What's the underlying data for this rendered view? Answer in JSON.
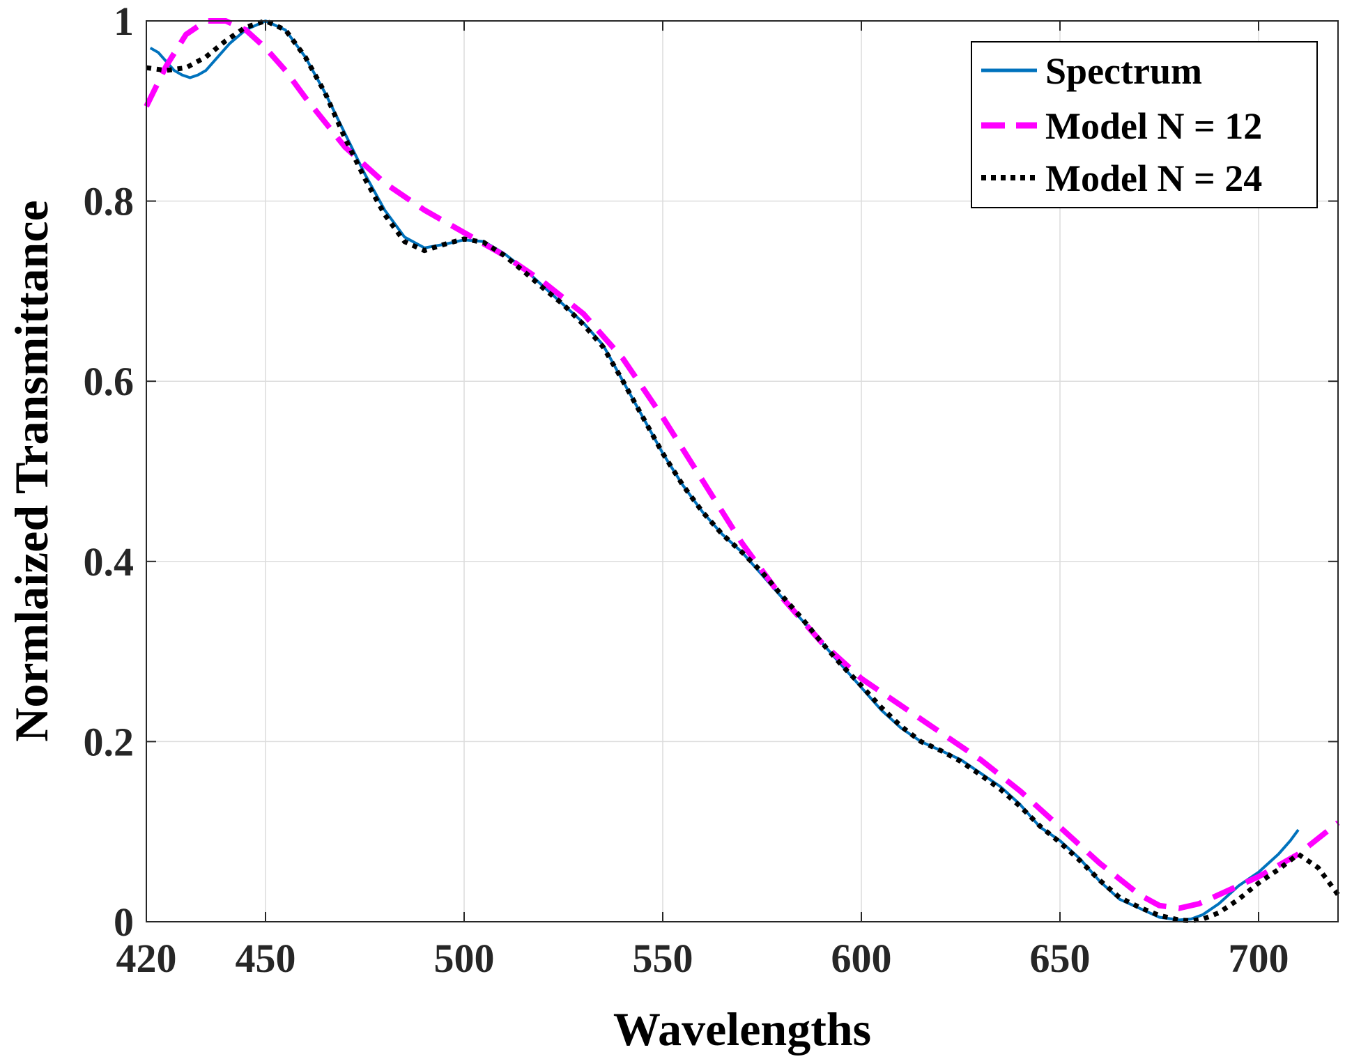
{
  "chart_data": {
    "type": "line",
    "title": "",
    "xlabel": "Wavelengths",
    "ylabel": "Normlaized Transmittance",
    "xlim": [
      420,
      720
    ],
    "ylim": [
      0,
      1
    ],
    "xticks": [
      420,
      450,
      500,
      550,
      600,
      650,
      700
    ],
    "yticks": [
      0,
      0.2,
      0.4,
      0.6,
      0.8,
      1
    ],
    "xtick_labels": [
      "420",
      "450",
      "500",
      "550",
      "600",
      "650",
      "700"
    ],
    "ytick_labels": [
      "0",
      "0.2",
      "0.4",
      "0.6",
      "0.8",
      "1"
    ],
    "grid": true,
    "legend_position": "top-right",
    "series": [
      {
        "name": "Spectrum",
        "color": "#0072BD",
        "style": "solid",
        "x": [
          421,
          423,
          425,
          427,
          429,
          431,
          433,
          435,
          438,
          441,
          445,
          450,
          455,
          460,
          465,
          470,
          475,
          480,
          485,
          490,
          495,
          500,
          505,
          510,
          515,
          520,
          525,
          530,
          535,
          540,
          545,
          550,
          555,
          560,
          565,
          570,
          575,
          580,
          585,
          590,
          595,
          600,
          605,
          610,
          615,
          620,
          625,
          630,
          635,
          640,
          645,
          650,
          655,
          660,
          665,
          670,
          675,
          680,
          683,
          686,
          690,
          695,
          700,
          705,
          708,
          710
        ],
        "y": [
          0.97,
          0.965,
          0.955,
          0.945,
          0.94,
          0.937,
          0.94,
          0.945,
          0.96,
          0.975,
          0.99,
          1.0,
          0.99,
          0.96,
          0.92,
          0.875,
          0.83,
          0.79,
          0.76,
          0.748,
          0.752,
          0.757,
          0.755,
          0.742,
          0.725,
          0.705,
          0.685,
          0.665,
          0.64,
          0.6,
          0.56,
          0.52,
          0.485,
          0.455,
          0.43,
          0.41,
          0.385,
          0.36,
          0.335,
          0.31,
          0.285,
          0.26,
          0.235,
          0.215,
          0.2,
          0.19,
          0.18,
          0.165,
          0.15,
          0.13,
          0.105,
          0.09,
          0.07,
          0.045,
          0.025,
          0.015,
          0.005,
          0.002,
          0.003,
          0.008,
          0.02,
          0.04,
          0.055,
          0.075,
          0.09,
          0.102
        ]
      },
      {
        "name": "Model N = 12",
        "color": "#FF00FF",
        "style": "dashed",
        "x": [
          420,
          425,
          430,
          435,
          440,
          445,
          450,
          455,
          460,
          470,
          480,
          490,
          500,
          510,
          520,
          530,
          540,
          550,
          560,
          570,
          580,
          590,
          600,
          610,
          620,
          630,
          640,
          650,
          660,
          670,
          675,
          680,
          685,
          690,
          700,
          710,
          720
        ],
        "y": [
          0.905,
          0.95,
          0.985,
          1.0,
          1.0,
          0.99,
          0.97,
          0.945,
          0.915,
          0.86,
          0.82,
          0.79,
          0.765,
          0.74,
          0.71,
          0.675,
          0.625,
          0.56,
          0.49,
          0.42,
          0.36,
          0.31,
          0.27,
          0.24,
          0.21,
          0.18,
          0.145,
          0.105,
          0.065,
          0.03,
          0.018,
          0.015,
          0.02,
          0.03,
          0.05,
          0.075,
          0.11
        ]
      },
      {
        "name": "Model N = 24",
        "color": "#000000",
        "style": "dotted",
        "x": [
          420,
          425,
          430,
          435,
          440,
          445,
          450,
          455,
          460,
          465,
          470,
          475,
          480,
          485,
          490,
          495,
          500,
          505,
          510,
          515,
          520,
          525,
          530,
          535,
          540,
          545,
          550,
          555,
          560,
          565,
          570,
          575,
          580,
          585,
          590,
          595,
          600,
          605,
          610,
          615,
          620,
          625,
          630,
          635,
          640,
          645,
          650,
          655,
          660,
          665,
          670,
          675,
          680,
          683,
          686,
          690,
          695,
          700,
          705,
          710,
          715,
          720
        ],
        "y": [
          0.948,
          0.945,
          0.948,
          0.96,
          0.978,
          0.993,
          1.0,
          0.99,
          0.96,
          0.92,
          0.87,
          0.825,
          0.785,
          0.755,
          0.745,
          0.752,
          0.758,
          0.754,
          0.74,
          0.722,
          0.703,
          0.685,
          0.663,
          0.638,
          0.6,
          0.56,
          0.52,
          0.485,
          0.455,
          0.43,
          0.41,
          0.388,
          0.362,
          0.337,
          0.31,
          0.285,
          0.262,
          0.238,
          0.217,
          0.2,
          0.19,
          0.178,
          0.163,
          0.147,
          0.128,
          0.106,
          0.088,
          0.068,
          0.046,
          0.027,
          0.016,
          0.007,
          0.002,
          0.001,
          0.003,
          0.01,
          0.025,
          0.043,
          0.058,
          0.075,
          0.06,
          0.03
        ]
      }
    ]
  }
}
